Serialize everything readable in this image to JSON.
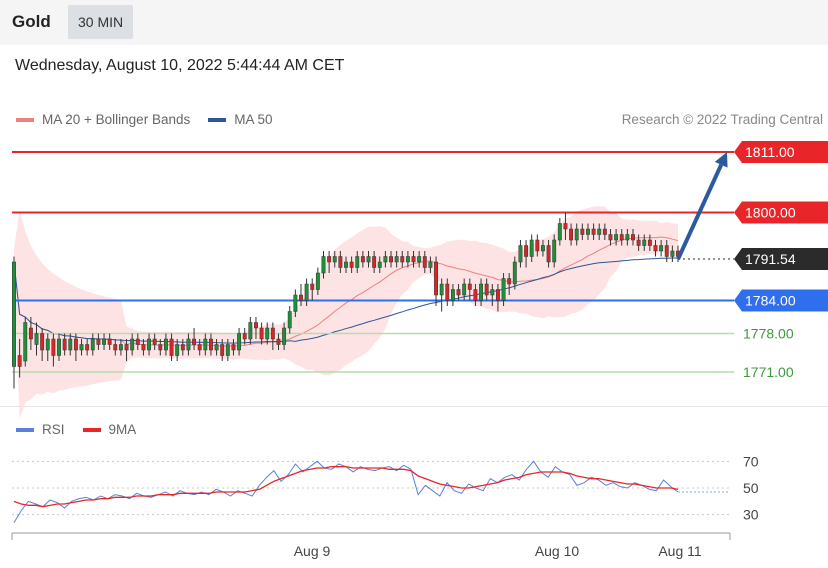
{
  "header": {
    "instrument": "Gold",
    "interval": "30 MIN"
  },
  "timestamp": "Wednesday, August 10, 2022 5:44:44 AM CET",
  "legend": {
    "bollinger": {
      "label": "MA 20 + Bollinger Bands",
      "color": "#f08080"
    },
    "ma50": {
      "label": "MA 50",
      "color": "#2b5797"
    }
  },
  "copyright": "Research © 2022 Trading Central",
  "rsi_legend": {
    "rsi": {
      "label": "RSI",
      "color": "#5b7fd9"
    },
    "ma9": {
      "label": "9MA",
      "color": "#e8262a"
    }
  },
  "chart_data": [
    {
      "type": "candlestick",
      "ylim": [
        1765,
        1815
      ],
      "current_price": {
        "value": 1791.54,
        "label": "1791.54"
      },
      "levels": [
        {
          "value": 1811.0,
          "label": "1811.00",
          "color": "#e8262a",
          "kind": "resistance"
        },
        {
          "value": 1800.0,
          "label": "1800.00",
          "color": "#e8262a",
          "kind": "resistance"
        },
        {
          "value": 1784.0,
          "label": "1784.00",
          "color": "#2f6fed",
          "kind": "pivot"
        },
        {
          "value": 1778.0,
          "label": "1778.00",
          "color": "#3c9a3c",
          "kind": "support"
        },
        {
          "value": 1771.0,
          "label": "1771.00",
          "color": "#3c9a3c",
          "kind": "support"
        }
      ],
      "forecast_arrow": {
        "from": 1791.5,
        "to": 1811.0,
        "color": "#2b5a9e"
      },
      "x_ticks": [
        "Aug 9",
        "Aug 10",
        "Aug 11"
      ],
      "candles": [
        [
          1772,
          1791,
          1768,
          1792
        ],
        [
          1774,
          1772,
          1770,
          1777
        ],
        [
          1773,
          1780,
          1772,
          1781
        ],
        [
          1779,
          1777,
          1775,
          1781
        ],
        [
          1776,
          1778,
          1774,
          1780
        ],
        [
          1778,
          1775,
          1773,
          1779
        ],
        [
          1775,
          1777,
          1773,
          1778
        ],
        [
          1777,
          1774,
          1772,
          1778
        ],
        [
          1774,
          1777,
          1773,
          1778
        ],
        [
          1777,
          1775,
          1774,
          1778
        ],
        [
          1775,
          1777,
          1774,
          1778
        ],
        [
          1777,
          1775,
          1773,
          1778
        ],
        [
          1775,
          1776,
          1774,
          1777
        ],
        [
          1776,
          1775,
          1774,
          1777
        ],
        [
          1775,
          1777,
          1774,
          1778
        ],
        [
          1777,
          1776,
          1775,
          1778
        ],
        [
          1776,
          1777,
          1775,
          1778
        ],
        [
          1777,
          1776,
          1775,
          1778
        ],
        [
          1776,
          1775,
          1774,
          1777
        ],
        [
          1775,
          1776,
          1774,
          1777
        ],
        [
          1776,
          1775,
          1773,
          1777
        ],
        [
          1775,
          1777,
          1774,
          1778
        ],
        [
          1777,
          1776,
          1775,
          1778
        ],
        [
          1776,
          1775,
          1774,
          1777
        ],
        [
          1775,
          1777,
          1774,
          1778
        ],
        [
          1777,
          1776,
          1775,
          1778
        ],
        [
          1776,
          1775,
          1774,
          1777
        ],
        [
          1775,
          1777,
          1774,
          1778
        ],
        [
          1777,
          1774,
          1773,
          1778
        ],
        [
          1774,
          1776,
          1773,
          1777
        ],
        [
          1776,
          1775,
          1774,
          1777
        ],
        [
          1775,
          1777,
          1774,
          1778
        ],
        [
          1777,
          1776,
          1775,
          1779
        ],
        [
          1776,
          1775,
          1774,
          1777
        ],
        [
          1775,
          1777,
          1774,
          1778
        ],
        [
          1777,
          1775,
          1774,
          1778
        ],
        [
          1775,
          1776,
          1774,
          1777
        ],
        [
          1776,
          1774,
          1773,
          1777
        ],
        [
          1774,
          1776,
          1773,
          1777
        ],
        [
          1776,
          1775,
          1774,
          1777
        ],
        [
          1775,
          1778,
          1774,
          1779
        ],
        [
          1778,
          1777,
          1776,
          1779
        ],
        [
          1777,
          1780,
          1776,
          1781
        ],
        [
          1780,
          1779,
          1777,
          1781
        ],
        [
          1779,
          1777,
          1776,
          1780
        ],
        [
          1777,
          1779,
          1776,
          1780
        ],
        [
          1779,
          1777,
          1775,
          1780
        ],
        [
          1777,
          1776,
          1775,
          1778
        ],
        [
          1776,
          1779,
          1775,
          1780
        ],
        [
          1779,
          1782,
          1778,
          1783
        ],
        [
          1782,
          1785,
          1781,
          1786
        ],
        [
          1785,
          1784,
          1783,
          1787
        ],
        [
          1784,
          1787,
          1783,
          1788
        ],
        [
          1787,
          1786,
          1784,
          1788
        ],
        [
          1786,
          1789,
          1785,
          1790
        ],
        [
          1789,
          1792,
          1788,
          1793
        ],
        [
          1792,
          1791,
          1789,
          1793
        ],
        [
          1791,
          1792,
          1790,
          1793
        ],
        [
          1792,
          1790,
          1789,
          1793
        ],
        [
          1790,
          1791,
          1789,
          1792
        ],
        [
          1791,
          1790,
          1789,
          1792
        ],
        [
          1790,
          1792,
          1789,
          1793
        ],
        [
          1792,
          1791,
          1790,
          1793
        ],
        [
          1791,
          1792,
          1790,
          1793
        ],
        [
          1792,
          1790,
          1789,
          1793
        ],
        [
          1790,
          1791,
          1789,
          1792
        ],
        [
          1791,
          1792,
          1790,
          1793
        ],
        [
          1792,
          1791,
          1790,
          1793
        ],
        [
          1791,
          1792,
          1790,
          1793
        ],
        [
          1792,
          1791,
          1790,
          1793
        ],
        [
          1791,
          1792,
          1790,
          1793
        ],
        [
          1792,
          1791,
          1790,
          1793
        ],
        [
          1791,
          1792,
          1790,
          1793
        ],
        [
          1792,
          1790,
          1789,
          1793
        ],
        [
          1790,
          1791,
          1789,
          1792
        ],
        [
          1791,
          1785,
          1783,
          1792
        ],
        [
          1785,
          1787,
          1782,
          1788
        ],
        [
          1787,
          1784,
          1783,
          1788
        ],
        [
          1784,
          1786,
          1783,
          1787
        ],
        [
          1786,
          1785,
          1784,
          1787
        ],
        [
          1785,
          1787,
          1784,
          1788
        ],
        [
          1787,
          1786,
          1784,
          1788
        ],
        [
          1786,
          1784,
          1783,
          1787
        ],
        [
          1784,
          1787,
          1783,
          1788
        ],
        [
          1787,
          1785,
          1784,
          1788
        ],
        [
          1785,
          1786,
          1783,
          1787
        ],
        [
          1786,
          1784,
          1782,
          1787
        ],
        [
          1784,
          1788,
          1783,
          1789
        ],
        [
          1788,
          1787,
          1785,
          1789
        ],
        [
          1787,
          1791,
          1786,
          1792
        ],
        [
          1791,
          1794,
          1790,
          1795
        ],
        [
          1794,
          1792,
          1790,
          1795
        ],
        [
          1792,
          1795,
          1791,
          1796
        ],
        [
          1795,
          1793,
          1792,
          1796
        ],
        [
          1793,
          1794,
          1792,
          1795
        ],
        [
          1794,
          1791,
          1790,
          1795
        ],
        [
          1791,
          1795,
          1790,
          1796
        ],
        [
          1795,
          1798,
          1794,
          1799
        ],
        [
          1798,
          1797,
          1795,
          1800
        ],
        [
          1797,
          1795,
          1794,
          1798
        ],
        [
          1795,
          1797,
          1794,
          1798
        ],
        [
          1797,
          1796,
          1795,
          1798
        ],
        [
          1796,
          1797,
          1795,
          1798
        ],
        [
          1797,
          1796,
          1795,
          1798
        ],
        [
          1796,
          1797,
          1795,
          1798
        ],
        [
          1797,
          1796,
          1795,
          1798
        ],
        [
          1796,
          1795,
          1794,
          1797
        ],
        [
          1795,
          1796,
          1794,
          1797
        ],
        [
          1796,
          1795,
          1794,
          1797
        ],
        [
          1795,
          1796,
          1794,
          1797
        ],
        [
          1796,
          1795,
          1794,
          1797
        ],
        [
          1795,
          1794,
          1793,
          1796
        ],
        [
          1794,
          1795,
          1793,
          1796
        ],
        [
          1795,
          1794,
          1793,
          1796
        ],
        [
          1794,
          1793,
          1792,
          1795
        ],
        [
          1793,
          1794,
          1792,
          1795
        ],
        [
          1794,
          1792,
          1791,
          1795
        ],
        [
          1792,
          1793,
          1791,
          1794
        ],
        [
          1793,
          1792,
          1791,
          1794
        ]
      ],
      "series": [
        {
          "name": "MA 20 + Bollinger Bands",
          "type": "band"
        },
        {
          "name": "MA 50",
          "type": "line"
        }
      ]
    },
    {
      "type": "line",
      "ylim": [
        20,
        80
      ],
      "y_ticks": [
        70,
        50,
        30
      ],
      "x_ticks": [
        "Aug 9",
        "Aug 10",
        "Aug 11"
      ],
      "series": [
        {
          "name": "RSI",
          "color": "#5b7fd9",
          "values": [
            24,
            33,
            40,
            38,
            36,
            41,
            39,
            35,
            40,
            42,
            43,
            41,
            44,
            42,
            45,
            44,
            42,
            46,
            44,
            43,
            45,
            47,
            44,
            48,
            46,
            45,
            47,
            45,
            49,
            47,
            44,
            48,
            46,
            44,
            52,
            58,
            63,
            55,
            60,
            68,
            62,
            66,
            70,
            65,
            64,
            68,
            66,
            62,
            66,
            64,
            63,
            65,
            66,
            63,
            67,
            64,
            45,
            52,
            48,
            44,
            54,
            48,
            46,
            53,
            50,
            48,
            57,
            54,
            58,
            60,
            56,
            64,
            70,
            62,
            58,
            66,
            62,
            60,
            52,
            54,
            58,
            56,
            52,
            54,
            51,
            50,
            54,
            52,
            49,
            48,
            56,
            51,
            47
          ]
        },
        {
          "name": "9MA",
          "color": "#e8262a",
          "values": [
            40,
            38,
            37,
            37,
            36,
            37,
            38,
            38,
            39,
            40,
            41,
            41,
            42,
            42,
            43,
            43,
            43,
            44,
            44,
            44,
            45,
            45,
            45,
            46,
            46,
            46,
            46,
            46,
            47,
            47,
            47,
            47,
            47,
            48,
            49,
            52,
            55,
            57,
            59,
            61,
            63,
            64,
            65,
            65,
            66,
            66,
            66,
            65,
            65,
            65,
            65,
            65,
            64,
            64,
            64,
            63,
            59,
            57,
            55,
            53,
            52,
            51,
            50,
            50,
            51,
            52,
            53,
            54,
            56,
            57,
            58,
            60,
            61,
            62,
            62,
            62,
            62,
            61,
            59,
            58,
            57,
            57,
            56,
            55,
            54,
            53,
            53,
            52,
            51,
            50,
            50,
            50,
            49
          ]
        }
      ]
    }
  ]
}
